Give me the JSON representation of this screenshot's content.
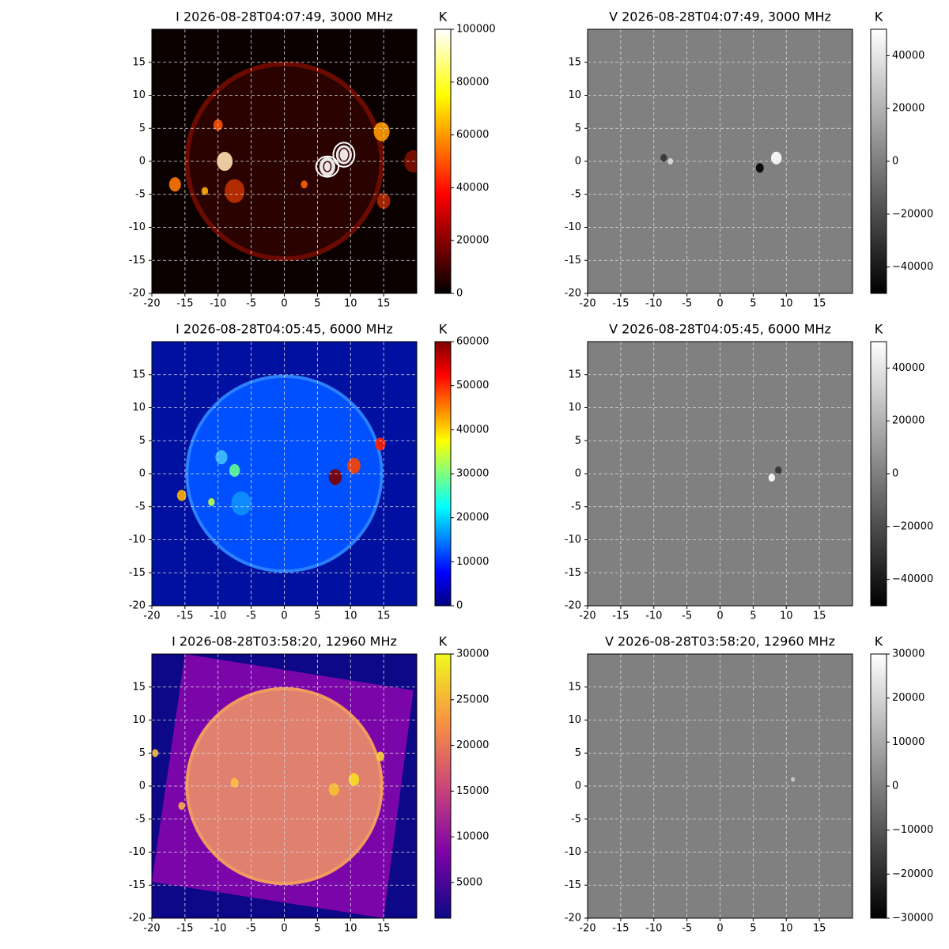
{
  "chart_data": [
    {
      "type": "image",
      "title": "I 2026-08-28T04:07:49, 3000 MHz",
      "colorbar_label": "K",
      "colormap": "hot",
      "xlim": [
        -20,
        20
      ],
      "ylim": [
        -20,
        20
      ],
      "xticks": [
        -20,
        -15,
        -10,
        -5,
        0,
        5,
        10,
        15
      ],
      "yticks": [
        -20,
        -15,
        -10,
        -5,
        0,
        5,
        10,
        15
      ],
      "grid": true,
      "clim": [
        0,
        100000
      ],
      "cticks": [
        0,
        20000,
        40000,
        60000,
        80000,
        100000
      ]
    },
    {
      "type": "image",
      "title": "V 2026-08-28T04:07:49, 3000 MHz",
      "colorbar_label": "K",
      "colormap": "gray",
      "xlim": [
        -20,
        20
      ],
      "ylim": [
        -20,
        20
      ],
      "xticks": [
        -20,
        -15,
        -10,
        -5,
        0,
        5,
        10,
        15
      ],
      "yticks": [
        -20,
        -15,
        -10,
        -5,
        0,
        5,
        10,
        15
      ],
      "grid": true,
      "clim": [
        -50000,
        50000
      ],
      "cticks": [
        {
          "value": -40000,
          "label": "−40000"
        },
        {
          "value": -20000,
          "label": "−20000"
        },
        0,
        20000,
        40000
      ]
    },
    {
      "type": "image",
      "title": "I 2026-08-28T04:05:45, 6000 MHz",
      "colorbar_label": "K",
      "colormap": "jet",
      "xlim": [
        -20,
        20
      ],
      "ylim": [
        -20,
        20
      ],
      "xticks": [
        -20,
        -15,
        -10,
        -5,
        0,
        5,
        10,
        15
      ],
      "yticks": [
        -20,
        -15,
        -10,
        -5,
        0,
        5,
        10,
        15
      ],
      "grid": true,
      "clim": [
        0,
        60000
      ],
      "cticks": [
        0,
        10000,
        20000,
        30000,
        40000,
        50000,
        60000
      ]
    },
    {
      "type": "image",
      "title": "V 2026-08-28T04:05:45, 6000 MHz",
      "colorbar_label": "K",
      "colormap": "gray",
      "xlim": [
        -20,
        20
      ],
      "ylim": [
        -20,
        20
      ],
      "xticks": [
        -20,
        -15,
        -10,
        -5,
        0,
        5,
        10,
        15
      ],
      "yticks": [
        -20,
        -15,
        -10,
        -5,
        0,
        5,
        10,
        15
      ],
      "grid": true,
      "clim": [
        -50000,
        50000
      ],
      "cticks": [
        {
          "value": -40000,
          "label": "−40000"
        },
        {
          "value": -20000,
          "label": "−20000"
        },
        0,
        20000,
        40000
      ]
    },
    {
      "type": "image",
      "title": "I 2026-08-28T03:58:20, 12960 MHz",
      "colorbar_label": "K",
      "colormap": "plasma",
      "xlim": [
        -20,
        20
      ],
      "ylim": [
        -20,
        20
      ],
      "xticks": [
        -20,
        -15,
        -10,
        -5,
        0,
        5,
        10,
        15
      ],
      "yticks": [
        -20,
        -15,
        -10,
        -5,
        0,
        5,
        10,
        15
      ],
      "grid": true,
      "clim": [
        1100,
        30000
      ],
      "cticks": [
        5000,
        10000,
        15000,
        20000,
        25000,
        30000
      ]
    },
    {
      "type": "image",
      "title": "V 2026-08-28T03:58:20, 12960 MHz",
      "colorbar_label": "K",
      "colormap": "gray",
      "xlim": [
        -20,
        20
      ],
      "ylim": [
        -20,
        20
      ],
      "xticks": [
        -20,
        -15,
        -10,
        -5,
        0,
        5,
        10,
        15
      ],
      "yticks": [
        -20,
        -15,
        -10,
        -5,
        0,
        5,
        10,
        15
      ],
      "grid": true,
      "clim": [
        -30000,
        30000
      ],
      "cticks": [
        {
          "value": -30000,
          "label": "−30000"
        },
        {
          "value": -20000,
          "label": "−20000"
        },
        {
          "value": -10000,
          "label": "−10000"
        },
        0,
        10000,
        20000,
        30000
      ]
    }
  ]
}
